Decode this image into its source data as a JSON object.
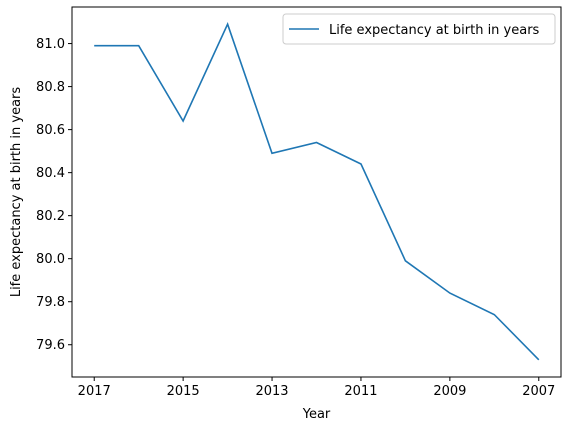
{
  "chart_data": {
    "type": "line",
    "xlabel": "Year",
    "ylabel": "Life expectancy at birth in years",
    "x": [
      2017,
      2016,
      2015,
      2014,
      2013,
      2012,
      2011,
      2010,
      2009,
      2008,
      2007
    ],
    "x_ticks": [
      "2017",
      "2015",
      "2013",
      "2011",
      "2009",
      "2007"
    ],
    "x_axis_reversed": true,
    "xlim": [
      2017.5,
      2006.5
    ],
    "y_ticks": [
      "79.6",
      "79.8",
      "80.0",
      "80.2",
      "80.4",
      "80.6",
      "80.8",
      "81.0"
    ],
    "ylim": [
      79.45,
      81.17
    ],
    "grid": false,
    "legend_position": "top-right",
    "series": [
      {
        "name": "Life expectancy at birth in years",
        "color": "#1f77b4",
        "values": [
          80.99,
          80.99,
          80.64,
          81.09,
          80.49,
          80.54,
          80.44,
          79.99,
          79.84,
          79.74,
          79.53
        ]
      }
    ]
  }
}
